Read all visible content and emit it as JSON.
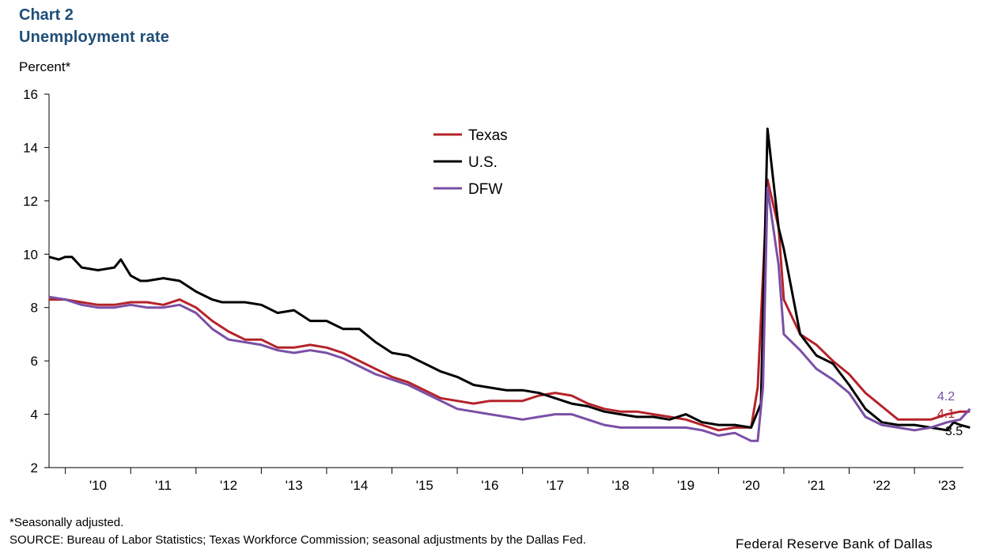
{
  "header": {
    "chart_number": "Chart 2",
    "title": "Unemployment rate",
    "unit_label": "Percent*"
  },
  "footer": {
    "note": "*Seasonally adjusted.",
    "source": "SOURCE: Bureau of Labor Statistics; Texas Workforce Commission; seasonal adjustments by the Dallas Fed.",
    "credit": "Federal Reserve Bank of Dallas"
  },
  "colors": {
    "texas": "#b5232a",
    "us": "#000000",
    "dfw": "#7a4fa6",
    "axis": "#000000"
  },
  "chart_data": {
    "type": "line",
    "title": "Unemployment rate",
    "ylabel": "Percent*",
    "xlabel": "",
    "ylim": [
      2,
      16
    ],
    "yticks": [
      2,
      4,
      6,
      8,
      10,
      12,
      14,
      16
    ],
    "xlim": [
      2009.75,
      2023.75
    ],
    "xticks": [
      {
        "label": "'10",
        "x": 2010.5
      },
      {
        "label": "'11",
        "x": 2011.5
      },
      {
        "label": "'12",
        "x": 2012.5
      },
      {
        "label": "'13",
        "x": 2013.5
      },
      {
        "label": "'14",
        "x": 2014.5
      },
      {
        "label": "'15",
        "x": 2015.5
      },
      {
        "label": "'16",
        "x": 2016.5
      },
      {
        "label": "'17",
        "x": 2017.5
      },
      {
        "label": "'18",
        "x": 2018.5
      },
      {
        "label": "'19",
        "x": 2019.5
      },
      {
        "label": "'20",
        "x": 2020.5
      },
      {
        "label": "'21",
        "x": 2021.5
      },
      {
        "label": "'22",
        "x": 2022.5
      },
      {
        "label": "'23",
        "x": 2023.5
      }
    ],
    "xbounds": [
      2010,
      2011,
      2012,
      2013,
      2014,
      2015,
      2016,
      2017,
      2018,
      2019,
      2020,
      2021,
      2022,
      2023
    ],
    "grid": false,
    "legend_position": "top-center",
    "series": [
      {
        "name": "Texas",
        "key": "texas",
        "end_label": "4.1",
        "points": [
          [
            2009.75,
            8.3
          ],
          [
            2010.0,
            8.3
          ],
          [
            2010.25,
            8.2
          ],
          [
            2010.5,
            8.1
          ],
          [
            2010.75,
            8.1
          ],
          [
            2011.0,
            8.2
          ],
          [
            2011.25,
            8.2
          ],
          [
            2011.5,
            8.1
          ],
          [
            2011.75,
            8.3
          ],
          [
            2012.0,
            8.0
          ],
          [
            2012.25,
            7.5
          ],
          [
            2012.5,
            7.1
          ],
          [
            2012.75,
            6.8
          ],
          [
            2013.0,
            6.8
          ],
          [
            2013.25,
            6.5
          ],
          [
            2013.5,
            6.5
          ],
          [
            2013.75,
            6.6
          ],
          [
            2014.0,
            6.5
          ],
          [
            2014.25,
            6.3
          ],
          [
            2014.5,
            6.0
          ],
          [
            2014.75,
            5.7
          ],
          [
            2015.0,
            5.4
          ],
          [
            2015.25,
            5.2
          ],
          [
            2015.5,
            4.9
          ],
          [
            2015.75,
            4.6
          ],
          [
            2016.0,
            4.5
          ],
          [
            2016.25,
            4.4
          ],
          [
            2016.5,
            4.5
          ],
          [
            2016.75,
            4.5
          ],
          [
            2017.0,
            4.5
          ],
          [
            2017.25,
            4.7
          ],
          [
            2017.5,
            4.8
          ],
          [
            2017.75,
            4.7
          ],
          [
            2018.0,
            4.4
          ],
          [
            2018.25,
            4.2
          ],
          [
            2018.5,
            4.1
          ],
          [
            2018.75,
            4.1
          ],
          [
            2019.0,
            4.0
          ],
          [
            2019.25,
            3.9
          ],
          [
            2019.5,
            3.8
          ],
          [
            2019.75,
            3.6
          ],
          [
            2020.0,
            3.4
          ],
          [
            2020.25,
            3.5
          ],
          [
            2020.5,
            3.5
          ],
          [
            2020.6,
            5.0
          ],
          [
            2020.75,
            12.8
          ],
          [
            2020.92,
            11.0
          ],
          [
            2021.0,
            8.3
          ],
          [
            2021.25,
            7.0
          ],
          [
            2021.5,
            6.6
          ],
          [
            2021.75,
            6.0
          ],
          [
            2022.0,
            5.5
          ],
          [
            2022.25,
            4.8
          ],
          [
            2022.5,
            4.3
          ],
          [
            2022.75,
            3.8
          ],
          [
            2023.0,
            3.8
          ],
          [
            2023.25,
            3.8
          ],
          [
            2023.5,
            4.0
          ],
          [
            2023.7,
            4.1
          ],
          [
            2023.85,
            4.1
          ]
        ]
      },
      {
        "name": "U.S.",
        "key": "us",
        "end_label": "3.5",
        "points": [
          [
            2009.75,
            9.9
          ],
          [
            2009.9,
            9.8
          ],
          [
            2010.0,
            9.9
          ],
          [
            2010.1,
            9.9
          ],
          [
            2010.25,
            9.5
          ],
          [
            2010.5,
            9.4
          ],
          [
            2010.75,
            9.5
          ],
          [
            2010.85,
            9.8
          ],
          [
            2011.0,
            9.2
          ],
          [
            2011.15,
            9.0
          ],
          [
            2011.25,
            9.0
          ],
          [
            2011.5,
            9.1
          ],
          [
            2011.75,
            9.0
          ],
          [
            2012.0,
            8.6
          ],
          [
            2012.25,
            8.3
          ],
          [
            2012.4,
            8.2
          ],
          [
            2012.75,
            8.2
          ],
          [
            2013.0,
            8.1
          ],
          [
            2013.25,
            7.8
          ],
          [
            2013.5,
            7.9
          ],
          [
            2013.75,
            7.5
          ],
          [
            2014.0,
            7.5
          ],
          [
            2014.25,
            7.2
          ],
          [
            2014.5,
            7.2
          ],
          [
            2014.75,
            6.7
          ],
          [
            2015.0,
            6.3
          ],
          [
            2015.25,
            6.2
          ],
          [
            2015.5,
            5.9
          ],
          [
            2015.75,
            5.6
          ],
          [
            2016.0,
            5.4
          ],
          [
            2016.25,
            5.1
          ],
          [
            2016.5,
            5.0
          ],
          [
            2016.75,
            4.9
          ],
          [
            2017.0,
            4.9
          ],
          [
            2017.25,
            4.8
          ],
          [
            2017.5,
            4.6
          ],
          [
            2017.75,
            4.4
          ],
          [
            2018.0,
            4.3
          ],
          [
            2018.25,
            4.1
          ],
          [
            2018.5,
            4.0
          ],
          [
            2018.75,
            3.9
          ],
          [
            2019.0,
            3.9
          ],
          [
            2019.25,
            3.8
          ],
          [
            2019.5,
            4.0
          ],
          [
            2019.75,
            3.7
          ],
          [
            2020.0,
            3.6
          ],
          [
            2020.25,
            3.6
          ],
          [
            2020.5,
            3.5
          ],
          [
            2020.65,
            4.4
          ],
          [
            2020.75,
            14.7
          ],
          [
            2020.92,
            11.0
          ],
          [
            2021.0,
            10.2
          ],
          [
            2021.25,
            7.0
          ],
          [
            2021.5,
            6.2
          ],
          [
            2021.75,
            5.9
          ],
          [
            2022.0,
            5.1
          ],
          [
            2022.25,
            4.2
          ],
          [
            2022.5,
            3.7
          ],
          [
            2022.75,
            3.6
          ],
          [
            2023.0,
            3.6
          ],
          [
            2023.25,
            3.5
          ],
          [
            2023.5,
            3.4
          ],
          [
            2023.6,
            3.7
          ],
          [
            2023.7,
            3.6
          ],
          [
            2023.85,
            3.5
          ]
        ]
      },
      {
        "name": "DFW",
        "key": "dfw",
        "end_label": "4.2",
        "points": [
          [
            2009.75,
            8.4
          ],
          [
            2010.0,
            8.3
          ],
          [
            2010.25,
            8.1
          ],
          [
            2010.5,
            8.0
          ],
          [
            2010.75,
            8.0
          ],
          [
            2011.0,
            8.1
          ],
          [
            2011.25,
            8.0
          ],
          [
            2011.5,
            8.0
          ],
          [
            2011.75,
            8.1
          ],
          [
            2012.0,
            7.8
          ],
          [
            2012.25,
            7.2
          ],
          [
            2012.5,
            6.8
          ],
          [
            2012.75,
            6.7
          ],
          [
            2013.0,
            6.6
          ],
          [
            2013.25,
            6.4
          ],
          [
            2013.5,
            6.3
          ],
          [
            2013.75,
            6.4
          ],
          [
            2014.0,
            6.3
          ],
          [
            2014.25,
            6.1
          ],
          [
            2014.5,
            5.8
          ],
          [
            2014.75,
            5.5
          ],
          [
            2015.0,
            5.3
          ],
          [
            2015.25,
            5.1
          ],
          [
            2015.5,
            4.8
          ],
          [
            2015.75,
            4.5
          ],
          [
            2016.0,
            4.2
          ],
          [
            2016.25,
            4.1
          ],
          [
            2016.5,
            4.0
          ],
          [
            2016.75,
            3.9
          ],
          [
            2017.0,
            3.8
          ],
          [
            2017.25,
            3.9
          ],
          [
            2017.5,
            4.0
          ],
          [
            2017.75,
            4.0
          ],
          [
            2018.0,
            3.8
          ],
          [
            2018.25,
            3.6
          ],
          [
            2018.5,
            3.5
          ],
          [
            2018.75,
            3.5
          ],
          [
            2019.0,
            3.5
          ],
          [
            2019.25,
            3.5
          ],
          [
            2019.5,
            3.5
          ],
          [
            2019.75,
            3.4
          ],
          [
            2020.0,
            3.2
          ],
          [
            2020.25,
            3.3
          ],
          [
            2020.5,
            3.0
          ],
          [
            2020.6,
            3.0
          ],
          [
            2020.68,
            5.0
          ],
          [
            2020.75,
            12.5
          ],
          [
            2020.92,
            9.6
          ],
          [
            2021.0,
            7.0
          ],
          [
            2021.25,
            6.4
          ],
          [
            2021.5,
            5.7
          ],
          [
            2021.75,
            5.3
          ],
          [
            2022.0,
            4.8
          ],
          [
            2022.25,
            3.9
          ],
          [
            2022.5,
            3.6
          ],
          [
            2022.75,
            3.5
          ],
          [
            2023.0,
            3.4
          ],
          [
            2023.25,
            3.5
          ],
          [
            2023.5,
            3.7
          ],
          [
            2023.7,
            3.8
          ],
          [
            2023.85,
            4.2
          ]
        ]
      }
    ]
  }
}
